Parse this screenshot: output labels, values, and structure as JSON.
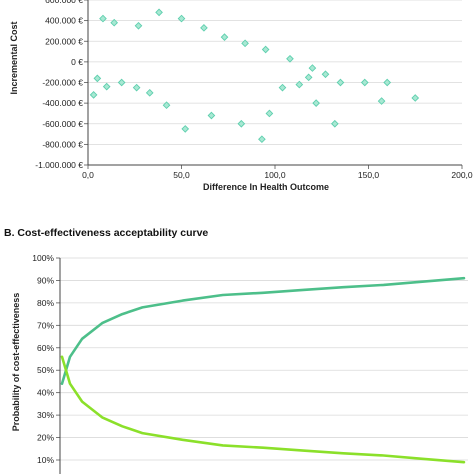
{
  "chart_data": [
    {
      "type": "scatter",
      "title": "",
      "xlabel": "Difference In Health Outcome",
      "ylabel": "Incremental Cost",
      "xlim": [
        0,
        200
      ],
      "ylim": [
        -1000000,
        600000
      ],
      "x_ticks": [
        "0,0",
        "50,0",
        "100,0",
        "150,0",
        "200,0"
      ],
      "y_ticks": [
        "600.000 €",
        "400.000 €",
        "200.000 €",
        "0 €",
        "-200.000 €",
        "-400.000 €",
        "-600.000 €",
        "-800.000 €",
        "-1.000.000 €"
      ],
      "grid": true,
      "marker": "diamond",
      "series": [
        {
          "color": "#5ecfae",
          "points": [
            [
              135,
              -200000
            ],
            [
              148,
              -200000
            ],
            [
              160,
              -200000
            ],
            [
              157,
              -380000
            ],
            [
              175,
              -350000
            ],
            [
              132,
              -600000
            ],
            [
              113,
              -220000
            ],
            [
              93,
              -750000
            ],
            [
              122,
              -400000
            ],
            [
              118,
              -150000
            ],
            [
              104,
              -250000
            ],
            [
              97,
              -500000
            ],
            [
              82,
              -600000
            ],
            [
              66,
              -520000
            ],
            [
              52,
              -650000
            ],
            [
              42,
              -420000
            ],
            [
              33,
              -300000
            ],
            [
              26,
              -250000
            ],
            [
              18,
              -200000
            ],
            [
              10,
              -240000
            ],
            [
              5,
              -160000
            ],
            [
              3,
              -320000
            ],
            [
              8,
              420000
            ],
            [
              14,
              380000
            ],
            [
              27,
              350000
            ],
            [
              38,
              480000
            ],
            [
              50,
              420000
            ],
            [
              62,
              330000
            ],
            [
              73,
              240000
            ],
            [
              84,
              180000
            ],
            [
              95,
              120000
            ],
            [
              108,
              30000
            ],
            [
              120,
              -60000
            ],
            [
              127,
              -120000
            ]
          ]
        }
      ]
    },
    {
      "type": "line",
      "title": "B. Cost-effectiveness acceptability curve",
      "xlabel": "",
      "ylabel": "Probability of cost-effectiveness",
      "ylim": [
        0.1,
        1.0
      ],
      "y_ticks": [
        "100%",
        "90%",
        "80%",
        "70%",
        "60%",
        "50%",
        "40%",
        "30%",
        "20%",
        "10%"
      ],
      "grid": true,
      "x_index": [
        0,
        2,
        5,
        10,
        15,
        20,
        30,
        40,
        50,
        60,
        70,
        80,
        90,
        100
      ],
      "series": [
        {
          "color": "#4dbf8a",
          "values": [
            0.44,
            0.56,
            0.64,
            0.71,
            0.75,
            0.78,
            0.81,
            0.835,
            0.845,
            0.858,
            0.87,
            0.88,
            0.895,
            0.91
          ]
        },
        {
          "color": "#8be02a",
          "values": [
            0.56,
            0.44,
            0.36,
            0.29,
            0.25,
            0.22,
            0.19,
            0.165,
            0.155,
            0.142,
            0.13,
            0.12,
            0.105,
            0.09
          ]
        }
      ]
    }
  ]
}
